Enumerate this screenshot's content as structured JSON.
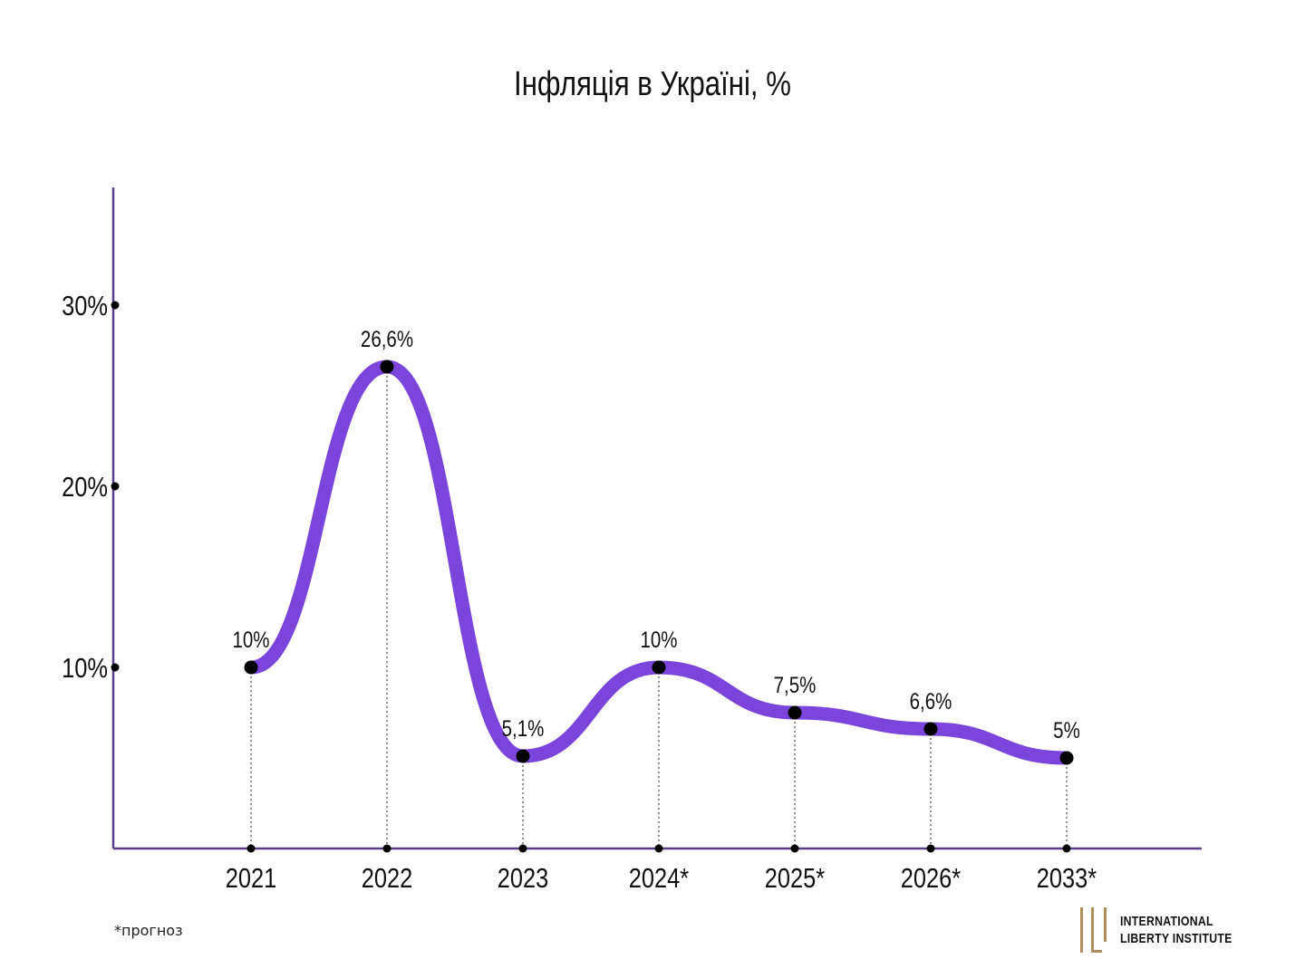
{
  "title": "Інфляція в Україні, %",
  "footnote": "*прогноз",
  "logo": {
    "line1": "International",
    "line2": "Liberty Institute"
  },
  "colors": {
    "line": "#7B45DB",
    "axis": "#5b3f86",
    "point": "#000000",
    "logo_accent": "#B08D5C"
  },
  "chart_data": {
    "type": "line",
    "title": "Інфляція в Україні, %",
    "categories": [
      "2021",
      "2022",
      "2023",
      "2024*",
      "2025*",
      "2026*",
      "2033*"
    ],
    "values": [
      10,
      26.6,
      5.1,
      10,
      7.5,
      6.6,
      5
    ],
    "data_labels": [
      "10%",
      "26,6%",
      "5,1%",
      "10%",
      "7,5%",
      "6,6%",
      "5%"
    ],
    "y_ticks": [
      10,
      20,
      30
    ],
    "y_tick_labels": [
      "10%",
      "20%",
      "30%"
    ],
    "ylim": [
      0,
      36.5
    ],
    "xlabel": "",
    "ylabel": "",
    "grid": false,
    "smooth": true,
    "guide_lines": "dotted vertical from each point to x-axis"
  }
}
